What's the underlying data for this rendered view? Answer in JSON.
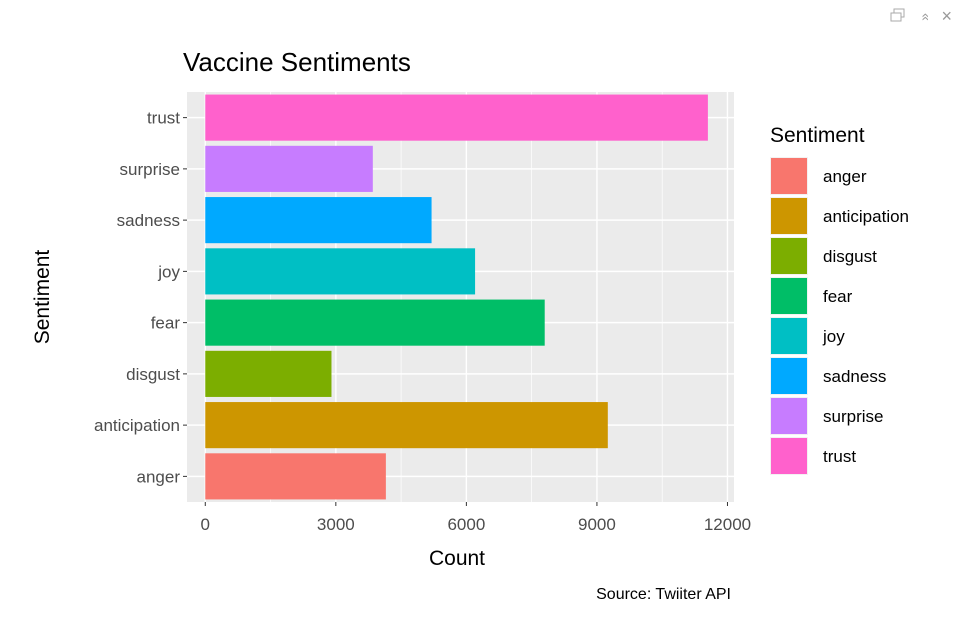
{
  "window_controls": {
    "popout_icon": "popout-icon",
    "collapse_icon": "collapse-icon",
    "close_icon": "close-icon",
    "collapse_glyph": "»",
    "close_glyph": "×"
  },
  "chart_data": {
    "type": "bar",
    "orientation": "horizontal",
    "title": "Vaccine Sentiments",
    "xlabel": "Count",
    "ylabel": "Sentiment",
    "caption": "Source: Twiiter API",
    "categories": [
      "anger",
      "anticipation",
      "disgust",
      "fear",
      "joy",
      "sadness",
      "surprise",
      "trust"
    ],
    "values": [
      4150,
      9250,
      2900,
      7800,
      6200,
      5200,
      3850,
      11550
    ],
    "colors": [
      "#F8766D",
      "#CD9600",
      "#7CAE00",
      "#00BE67",
      "#00BFC4",
      "#00A9FF",
      "#C77CFF",
      "#FF61CC"
    ],
    "xlim": [
      -420,
      12150
    ],
    "xticks": [
      0,
      3000,
      6000,
      9000,
      12000
    ],
    "xtick_labels": [
      "0",
      "3000",
      "6000",
      "9000",
      "12000"
    ],
    "grid": true,
    "panel_background": "#EBEBEB",
    "legend": {
      "title": "Sentiment",
      "position": "right",
      "items": [
        "anger",
        "anticipation",
        "disgust",
        "fear",
        "joy",
        "sadness",
        "surprise",
        "trust"
      ]
    }
  }
}
